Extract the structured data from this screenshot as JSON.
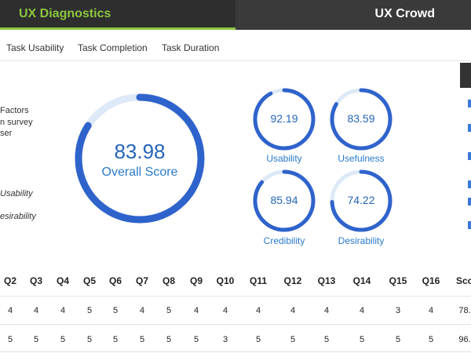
{
  "header": {
    "brand": "UX Diagnostics",
    "right_title": "UX Crowd"
  },
  "tabs": [
    "Task Usability",
    "Task Completion",
    "Task Duration"
  ],
  "sidebar_lines": [
    "Factors",
    "n survey",
    "ser"
  ],
  "sidebar_italic": [
    "Usability",
    "esirability"
  ],
  "overall": {
    "value": "83.98",
    "label": "Overall Score",
    "fraction": 0.8398
  },
  "gauges": [
    {
      "value": "92.19",
      "label": "Usability",
      "fraction": 0.9219
    },
    {
      "value": "83.59",
      "label": "Usefulness",
      "fraction": 0.8359
    },
    {
      "value": "85.94",
      "label": "Credibility",
      "fraction": 0.8594
    },
    {
      "value": "74.22",
      "label": "Desirability",
      "fraction": 0.7422
    }
  ],
  "colors": {
    "gauge_fill": "#2f63cc",
    "gauge_track": "#dde9f6",
    "brand_green": "#8cc63f"
  },
  "table": {
    "headers": [
      "Q2",
      "Q3",
      "Q4",
      "Q5",
      "Q6",
      "Q7",
      "Q8",
      "Q9",
      "Q10",
      "Q11",
      "Q12",
      "Q13",
      "Q14",
      "Q15",
      "Q16",
      "Sco"
    ],
    "rows": [
      [
        "4",
        "4",
        "4",
        "5",
        "5",
        "4",
        "5",
        "4",
        "4",
        "4",
        "4",
        "4",
        "4",
        "3",
        "4",
        "78."
      ],
      [
        "5",
        "5",
        "5",
        "5",
        "5",
        "5",
        "5",
        "5",
        "3",
        "5",
        "5",
        "5",
        "5",
        "5",
        "5",
        "96."
      ]
    ]
  }
}
